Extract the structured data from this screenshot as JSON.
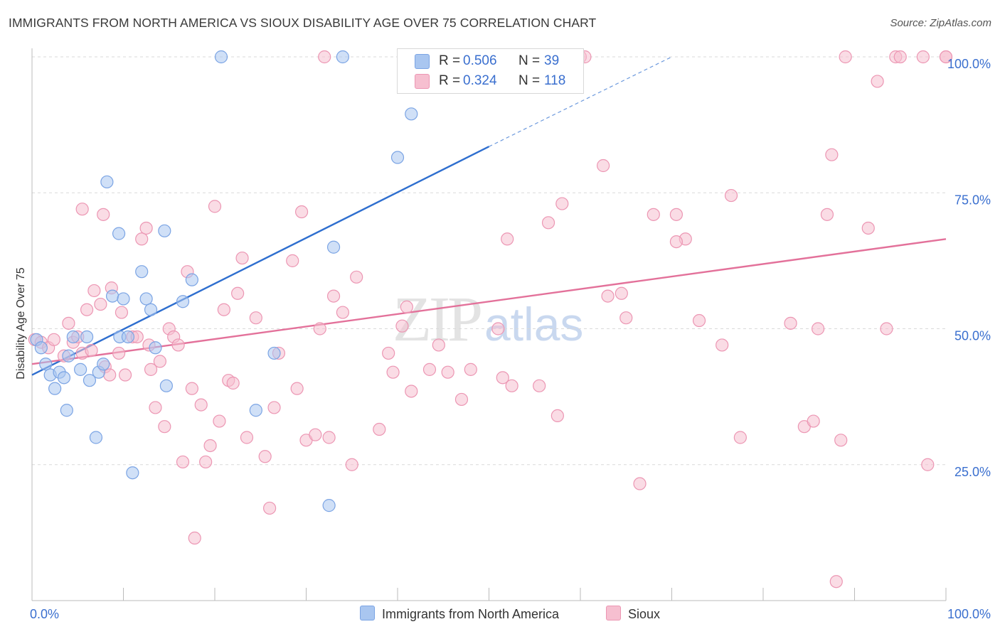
{
  "title": "IMMIGRANTS FROM NORTH AMERICA VS SIOUX DISABILITY AGE OVER 75 CORRELATION CHART",
  "source": "Source: ZipAtlas.com",
  "watermark": {
    "zip": "ZIP",
    "atlas": "atlas"
  },
  "colors": {
    "blue_fill": "#a9c6f0",
    "blue_stroke": "#7ba4e4",
    "blue_line": "#2f6fcf",
    "pink_fill": "#f6bfd0",
    "pink_stroke": "#ec96b3",
    "pink_line": "#e3719a",
    "tick_label": "#3a6fcf",
    "grid": "#d9d9d9"
  },
  "stats": [
    {
      "r_label": "R =",
      "r_value": "0.506",
      "n_label": "N =",
      "n_value": "39",
      "color": "#a9c6f0"
    },
    {
      "r_label": "R =",
      "r_value": "0.324",
      "n_label": "N =",
      "n_value": "118",
      "color": "#f6bfd0"
    }
  ],
  "legend": [
    {
      "name": "Immigrants from North America",
      "color": "#a9c6f0"
    },
    {
      "name": "Sioux",
      "color": "#f6bfd0"
    }
  ],
  "chart_data": {
    "type": "scatter",
    "title": "IMMIGRANTS FROM NORTH AMERICA VS SIOUX DISABILITY AGE OVER 75 CORRELATION CHART",
    "xlabel": "",
    "ylabel": "Disability Age Over 75",
    "xlim": [
      0,
      100
    ],
    "ylim": [
      0,
      100
    ],
    "x_tick_labels": [
      {
        "value": 0,
        "label": "0.0%"
      },
      {
        "value": 100,
        "label": "100.0%"
      }
    ],
    "y_tick_labels": [
      {
        "value": 25,
        "label": "25.0%"
      },
      {
        "value": 50,
        "label": "50.0%"
      },
      {
        "value": 75,
        "label": "75.0%"
      },
      {
        "value": 100,
        "label": "100.0%"
      }
    ],
    "grid": true,
    "legend_position": "bottom",
    "series": [
      {
        "name": "Immigrants from North America",
        "trend": {
          "x": [
            0,
            50
          ],
          "y": [
            41.5,
            83.5
          ],
          "dashed_to": {
            "x": 70,
            "y": 100
          }
        },
        "points": [
          [
            0.5,
            48.0
          ],
          [
            1.0,
            46.5
          ],
          [
            1.5,
            43.5
          ],
          [
            2.0,
            41.5
          ],
          [
            2.5,
            39.0
          ],
          [
            3.0,
            42.0
          ],
          [
            3.5,
            41.0
          ],
          [
            3.8,
            35.0
          ],
          [
            4.0,
            45.0
          ],
          [
            4.5,
            48.5
          ],
          [
            5.3,
            42.5
          ],
          [
            6.0,
            48.5
          ],
          [
            6.3,
            40.5
          ],
          [
            7.0,
            30.0
          ],
          [
            7.3,
            42.0
          ],
          [
            7.8,
            43.5
          ],
          [
            8.2,
            77.0
          ],
          [
            8.8,
            56.0
          ],
          [
            9.5,
            67.5
          ],
          [
            9.6,
            48.5
          ],
          [
            10.0,
            55.5
          ],
          [
            10.5,
            48.5
          ],
          [
            11.0,
            23.5
          ],
          [
            12.0,
            60.5
          ],
          [
            12.5,
            55.5
          ],
          [
            13.0,
            53.5
          ],
          [
            13.5,
            46.5
          ],
          [
            14.5,
            68.0
          ],
          [
            14.7,
            39.5
          ],
          [
            16.5,
            55.0
          ],
          [
            17.5,
            59.0
          ],
          [
            20.7,
            100.0
          ],
          [
            24.5,
            35.0
          ],
          [
            26.5,
            45.5
          ],
          [
            32.5,
            17.5
          ],
          [
            33.0,
            65.0
          ],
          [
            34.0,
            100.0
          ],
          [
            40.0,
            81.5
          ],
          [
            41.5,
            89.5
          ]
        ]
      },
      {
        "name": "Sioux",
        "trend": {
          "x": [
            0,
            100
          ],
          "y": [
            43.5,
            66.5
          ]
        },
        "points": [
          [
            0.3,
            48.0
          ],
          [
            1.0,
            47.5
          ],
          [
            1.8,
            46.5
          ],
          [
            2.4,
            48.0
          ],
          [
            3.5,
            45.0
          ],
          [
            4.0,
            51.0
          ],
          [
            4.5,
            47.5
          ],
          [
            5.0,
            48.5
          ],
          [
            5.5,
            45.5
          ],
          [
            5.5,
            72.0
          ],
          [
            6.0,
            53.5
          ],
          [
            6.5,
            46.0
          ],
          [
            6.8,
            57.0
          ],
          [
            7.5,
            54.5
          ],
          [
            7.8,
            71.0
          ],
          [
            8.0,
            43.0
          ],
          [
            8.5,
            41.5
          ],
          [
            8.7,
            57.5
          ],
          [
            9.5,
            45.5
          ],
          [
            9.8,
            53.0
          ],
          [
            10.2,
            41.5
          ],
          [
            11.0,
            48.5
          ],
          [
            11.5,
            48.5
          ],
          [
            12.0,
            66.5
          ],
          [
            12.5,
            68.5
          ],
          [
            12.8,
            47.0
          ],
          [
            13.0,
            42.5
          ],
          [
            13.5,
            35.5
          ],
          [
            14.0,
            44.0
          ],
          [
            14.5,
            32.0
          ],
          [
            15.0,
            50.0
          ],
          [
            15.5,
            48.5
          ],
          [
            16.0,
            47.0
          ],
          [
            16.5,
            25.5
          ],
          [
            17.0,
            60.5
          ],
          [
            17.5,
            39.0
          ],
          [
            17.8,
            11.5
          ],
          [
            18.5,
            36.0
          ],
          [
            19.0,
            25.5
          ],
          [
            19.5,
            28.5
          ],
          [
            20.0,
            72.5
          ],
          [
            20.5,
            33.0
          ],
          [
            21.0,
            53.5
          ],
          [
            21.5,
            40.5
          ],
          [
            22.0,
            40.0
          ],
          [
            22.5,
            56.5
          ],
          [
            23.0,
            63.0
          ],
          [
            23.5,
            30.0
          ],
          [
            24.5,
            52.0
          ],
          [
            25.5,
            26.5
          ],
          [
            26.0,
            17.0
          ],
          [
            26.5,
            35.5
          ],
          [
            27.0,
            45.5
          ],
          [
            28.5,
            62.5
          ],
          [
            29.0,
            39.0
          ],
          [
            29.5,
            71.5
          ],
          [
            30.0,
            29.5
          ],
          [
            31.0,
            30.5
          ],
          [
            31.5,
            50.0
          ],
          [
            32.0,
            100.0
          ],
          [
            32.5,
            30.0
          ],
          [
            33.0,
            56.0
          ],
          [
            34.0,
            53.0
          ],
          [
            35.0,
            25.0
          ],
          [
            35.5,
            59.5
          ],
          [
            38.0,
            31.5
          ],
          [
            39.0,
            45.5
          ],
          [
            39.5,
            42.0
          ],
          [
            40.5,
            50.5
          ],
          [
            41.0,
            54.0
          ],
          [
            41.5,
            38.5
          ],
          [
            43.5,
            42.5
          ],
          [
            44.5,
            47.0
          ],
          [
            45.5,
            42.0
          ],
          [
            47.0,
            37.0
          ],
          [
            48.0,
            42.5
          ],
          [
            51.0,
            50.0
          ],
          [
            51.5,
            41.0
          ],
          [
            52.0,
            66.5
          ],
          [
            52.5,
            39.5
          ],
          [
            55.5,
            39.5
          ],
          [
            56.5,
            69.5
          ],
          [
            57.5,
            34.0
          ],
          [
            58.0,
            73.0
          ],
          [
            58.5,
            100.0
          ],
          [
            60.0,
            100.0
          ],
          [
            60.5,
            100.0
          ],
          [
            62.5,
            80.0
          ],
          [
            63.0,
            56.0
          ],
          [
            64.5,
            56.5
          ],
          [
            65.0,
            52.0
          ],
          [
            66.5,
            21.5
          ],
          [
            68.0,
            71.0
          ],
          [
            70.5,
            71.0
          ],
          [
            71.5,
            66.5
          ],
          [
            70.5,
            66.0
          ],
          [
            73.0,
            51.5
          ],
          [
            75.5,
            47.0
          ],
          [
            76.5,
            74.5
          ],
          [
            77.5,
            30.0
          ],
          [
            83.0,
            51.0
          ],
          [
            84.5,
            32.0
          ],
          [
            85.5,
            33.0
          ],
          [
            86.0,
            50.0
          ],
          [
            87.0,
            71.0
          ],
          [
            87.5,
            82.0
          ],
          [
            88.0,
            3.5
          ],
          [
            88.5,
            29.5
          ],
          [
            89.0,
            100.0
          ],
          [
            91.5,
            68.5
          ],
          [
            92.5,
            95.5
          ],
          [
            93.5,
            50.0
          ],
          [
            94.5,
            100.0
          ],
          [
            95.0,
            100.0
          ],
          [
            97.5,
            100.0
          ],
          [
            98.0,
            25.0
          ],
          [
            100.0,
            100.0
          ],
          [
            100.0,
            100.0
          ]
        ]
      }
    ]
  }
}
